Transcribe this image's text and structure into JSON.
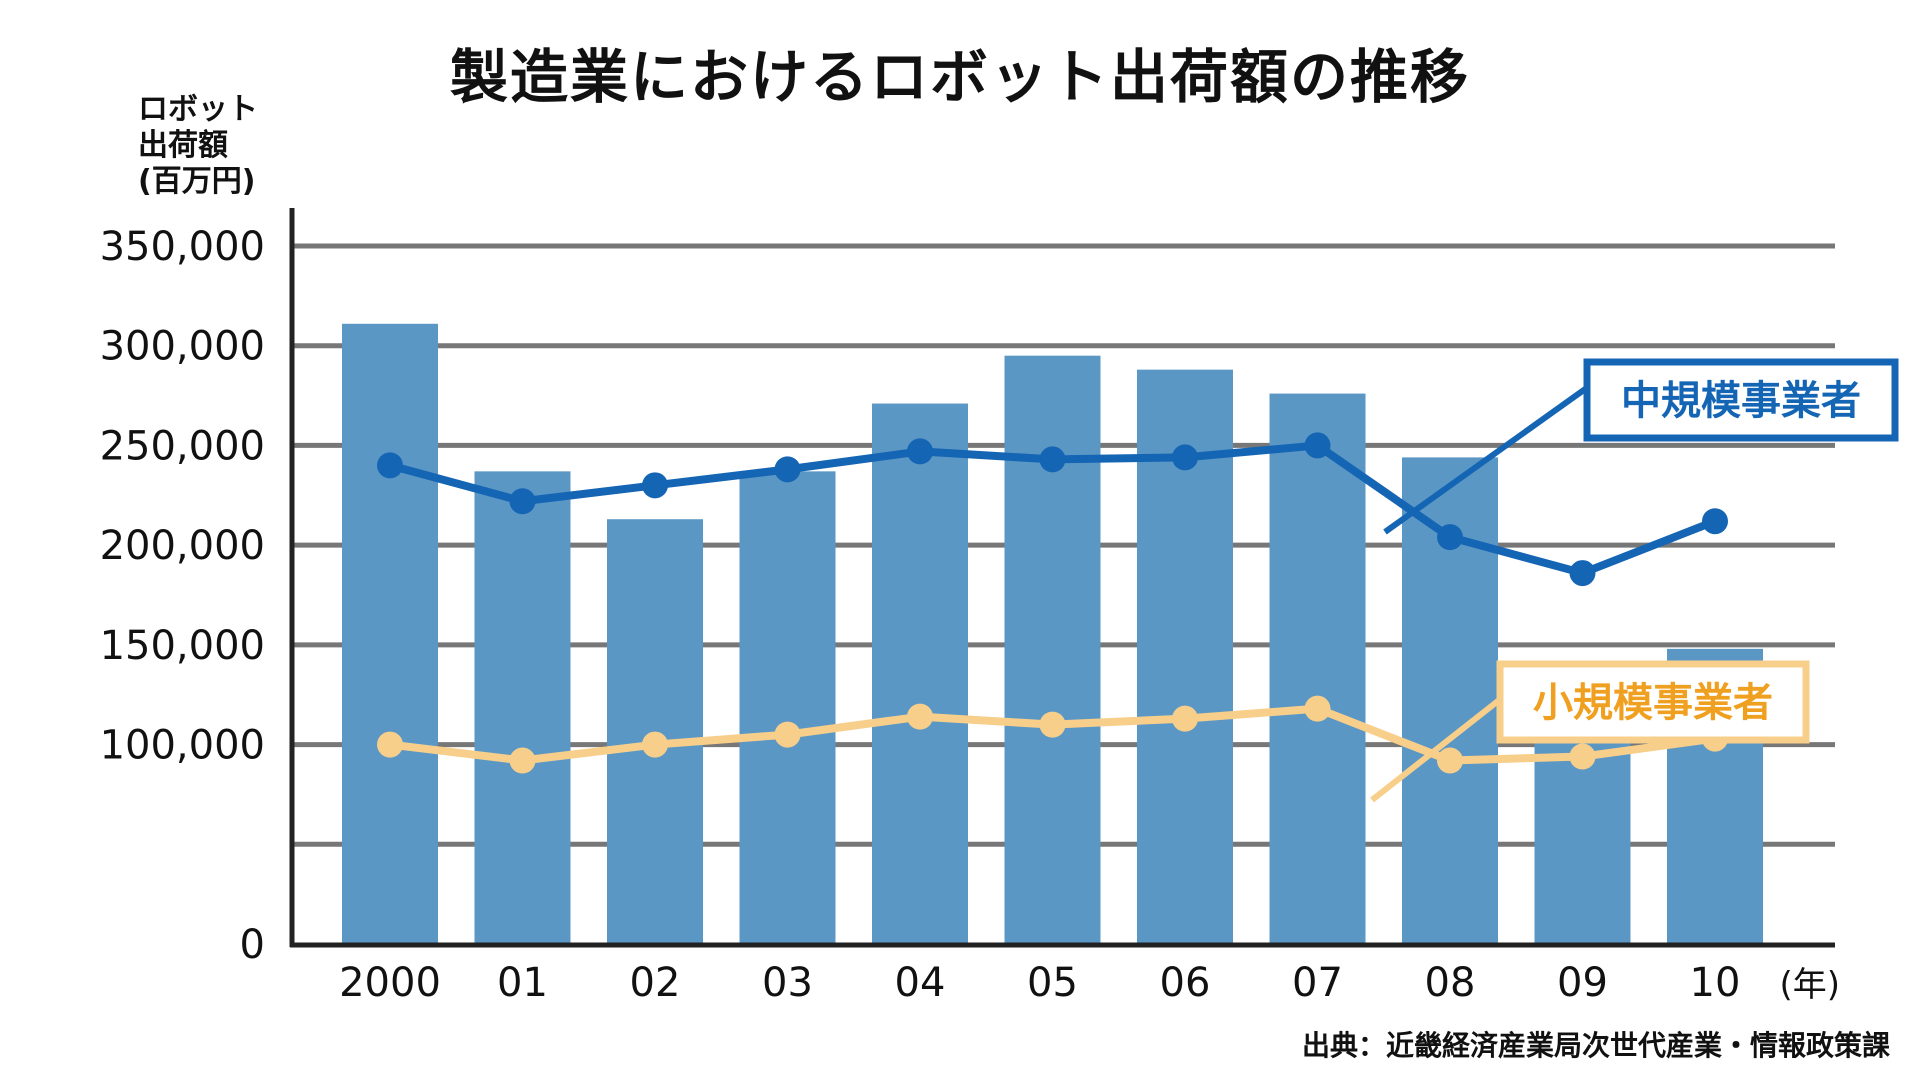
{
  "chart_data": {
    "type": "bar",
    "title": "製造業におけるロボット出荷額の推移",
    "ylabel_lines": [
      "ロボット",
      "出荷額",
      "(百万円)"
    ],
    "xunit": "(年)",
    "source": "出典：近畿経済産業局次世代産業・情報政策課",
    "categories": [
      "2000",
      "01",
      "02",
      "03",
      "04",
      "05",
      "06",
      "07",
      "08",
      "09",
      "10"
    ],
    "ylim": [
      0,
      350000
    ],
    "yticks": [
      0,
      50000,
      100000,
      150000,
      200000,
      250000,
      300000,
      350000
    ],
    "ytick_labels": [
      "0",
      "100,000",
      "150,000",
      "200,000",
      "250,000",
      "300,000",
      "350,000"
    ],
    "ytick_label_values": [
      0,
      100000,
      150000,
      200000,
      250000,
      300000,
      350000
    ],
    "grid": true,
    "bars": [
      311000,
      237000,
      213000,
      237000,
      271000,
      295000,
      288000,
      276000,
      244000,
      129000,
      148000
    ],
    "lines": [
      {
        "name": "中規模事業者",
        "color": "#1565b5",
        "values": [
          240000,
          222000,
          230000,
          238000,
          247000,
          243000,
          244000,
          250000,
          204000,
          186000,
          212000
        ]
      },
      {
        "name": "小規模事業者",
        "color": "#f8cf8a",
        "values": [
          100000,
          92000,
          100000,
          105000,
          114000,
          110000,
          113000,
          118000,
          92000,
          94000,
          103000
        ]
      }
    ],
    "colors": {
      "bar": "#5b97c4",
      "grid": "#777777",
      "axis": "#222222",
      "label_mid_text": "#1565b5",
      "label_small_text": "#f0a020"
    }
  }
}
